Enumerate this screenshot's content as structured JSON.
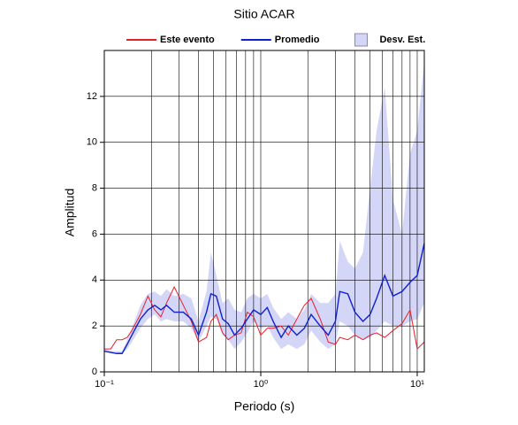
{
  "chart_data": {
    "type": "line",
    "title": "Sitio ACAR",
    "xlabel": "Periodo (s)",
    "ylabel": "Amplitud",
    "x": [
      0.1,
      0.11,
      0.12,
      0.13,
      0.14,
      0.15,
      0.17,
      0.19,
      0.21,
      0.23,
      0.25,
      0.28,
      0.32,
      0.36,
      0.4,
      0.45,
      0.48,
      0.52,
      0.57,
      0.62,
      0.68,
      0.75,
      0.82,
      0.9,
      1.0,
      1.1,
      1.2,
      1.35,
      1.5,
      1.7,
      1.9,
      2.1,
      2.4,
      2.7,
      3.0,
      3.2,
      3.6,
      4.0,
      4.5,
      5.0,
      5.5,
      6.2,
      7.0,
      8.0,
      9.0,
      10.0,
      11.1
    ],
    "series": [
      {
        "name": "Este evento",
        "color": "#e8202a",
        "values": [
          1,
          1,
          1.4,
          1.4,
          1.5,
          1.8,
          2.5,
          3.3,
          2.7,
          2.4,
          3.0,
          3.7,
          2.9,
          2.2,
          1.3,
          1.5,
          2.2,
          2.5,
          1.7,
          1.4,
          1.6,
          1.7,
          2.6,
          2.4,
          1.6,
          1.9,
          1.9,
          2.0,
          1.6,
          2.3,
          2.9,
          3.2,
          2.3,
          1.3,
          1.2,
          1.5,
          1.4,
          1.6,
          1.4,
          1.6,
          1.7,
          1.5,
          1.8,
          2.1,
          2.7,
          1.0,
          1.3
        ]
      },
      {
        "name": "Promedio",
        "color": "#1020d0",
        "values": [
          0.9,
          0.85,
          0.8,
          0.8,
          1.2,
          1.6,
          2.3,
          2.7,
          2.9,
          2.7,
          2.9,
          2.6,
          2.6,
          2.3,
          1.6,
          2.6,
          3.4,
          3.3,
          2.3,
          2.1,
          1.6,
          1.9,
          2.3,
          2.7,
          2.5,
          2.8,
          2.2,
          1.5,
          2.0,
          1.6,
          1.9,
          2.5,
          2.0,
          1.6,
          2.2,
          3.5,
          3.4,
          2.6,
          2.2,
          2.5,
          3.2,
          4.2,
          3.3,
          3.5,
          3.9,
          4.2,
          5.6
        ]
      },
      {
        "name": "Desv. Est.",
        "color": "#d4d6f8",
        "lower": [
          0.9,
          0.8,
          0.8,
          0.8,
          1.0,
          1.3,
          1.9,
          2.3,
          2.5,
          2.2,
          2.3,
          2.2,
          2.2,
          1.9,
          1.3,
          2.0,
          2.4,
          2.3,
          1.6,
          1.4,
          1.0,
          1.3,
          1.7,
          2.2,
          1.9,
          2.0,
          1.5,
          1.0,
          1.2,
          1.0,
          1.2,
          1.8,
          1.3,
          1.0,
          1.2,
          2.2,
          2.0,
          1.6,
          1.4,
          1.5,
          1.8,
          2.2,
          2.0,
          2.0,
          2.2,
          2.3,
          3.0
        ],
        "upper": [
          1.0,
          0.9,
          0.9,
          0.9,
          1.4,
          1.9,
          2.9,
          3.4,
          3.5,
          3.3,
          3.6,
          3.3,
          3.4,
          3.2,
          2.2,
          3.5,
          5.2,
          4.2,
          3.0,
          3.2,
          2.7,
          2.6,
          3.2,
          3.4,
          3.2,
          3.4,
          2.8,
          2.3,
          2.6,
          2.3,
          2.7,
          3.4,
          3.0,
          3.0,
          3.4,
          5.7,
          4.8,
          4.5,
          5.2,
          8.0,
          10.5,
          12.4,
          7.5,
          6.0,
          9.5,
          10.5,
          13.5
        ]
      }
    ],
    "xscale": "log",
    "xlim": [
      0.1,
      11.1
    ],
    "xticks": [
      {
        "value": 0.1,
        "label": "10⁻¹"
      },
      {
        "value": 1,
        "label": "10⁰"
      },
      {
        "value": 10,
        "label": "10¹"
      }
    ],
    "xgrid": [
      0.2,
      0.3,
      0.4,
      0.5,
      0.6,
      0.7,
      0.8,
      0.9,
      2,
      3,
      4,
      5,
      6,
      7,
      8,
      9
    ],
    "ylim": [
      0,
      14
    ],
    "yticks": [
      0,
      2,
      4,
      6,
      8,
      10,
      12
    ],
    "grid": true,
    "legend": "top"
  }
}
